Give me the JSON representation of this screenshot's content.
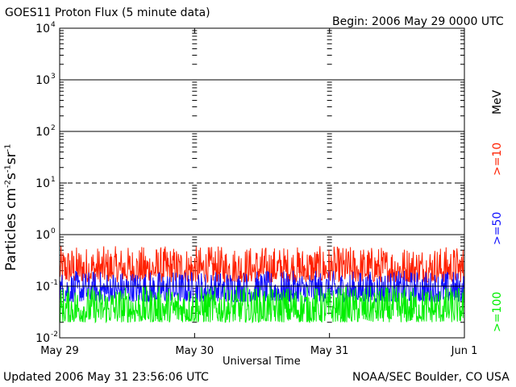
{
  "header": {
    "title": "GOES11 Proton Flux (5 minute data)",
    "begin": "Begin: 2006 May 29 0000 UTC"
  },
  "footer": {
    "updated": "Updated 2006 May 31 23:56:06 UTC",
    "credit": "NOAA/SEC Boulder, CO USA"
  },
  "chart_data": {
    "type": "line",
    "title": "GOES11 Proton Flux (5 minute data)",
    "xlabel": "Universal Time",
    "ylabel_parts": [
      "Particles cm",
      "-2",
      "s",
      "-1",
      "sr",
      "-1"
    ],
    "x_ticks": [
      "May 29",
      "May 30",
      "May 31",
      "Jun 1"
    ],
    "y_scale": "log",
    "ylim": [
      0.01,
      10000
    ],
    "y_tick_base": "10",
    "y_tick_exponents": [
      "-2",
      "-1",
      "0",
      "1",
      "2",
      "3",
      "4"
    ],
    "unit": "MeV",
    "grid": {
      "solid_levels": [
        1000,
        100,
        1
      ],
      "dashed_levels": [
        10,
        0.1
      ]
    },
    "series": [
      {
        "name": ">=10",
        "color": "#ff2000",
        "typical_range": [
          0.12,
          0.6
        ]
      },
      {
        "name": ">=50",
        "color": "#1010ff",
        "typical_range": [
          0.05,
          0.2
        ]
      },
      {
        "name": ">=100",
        "color": "#00ee00",
        "typical_range": [
          0.02,
          0.1
        ]
      }
    ]
  }
}
